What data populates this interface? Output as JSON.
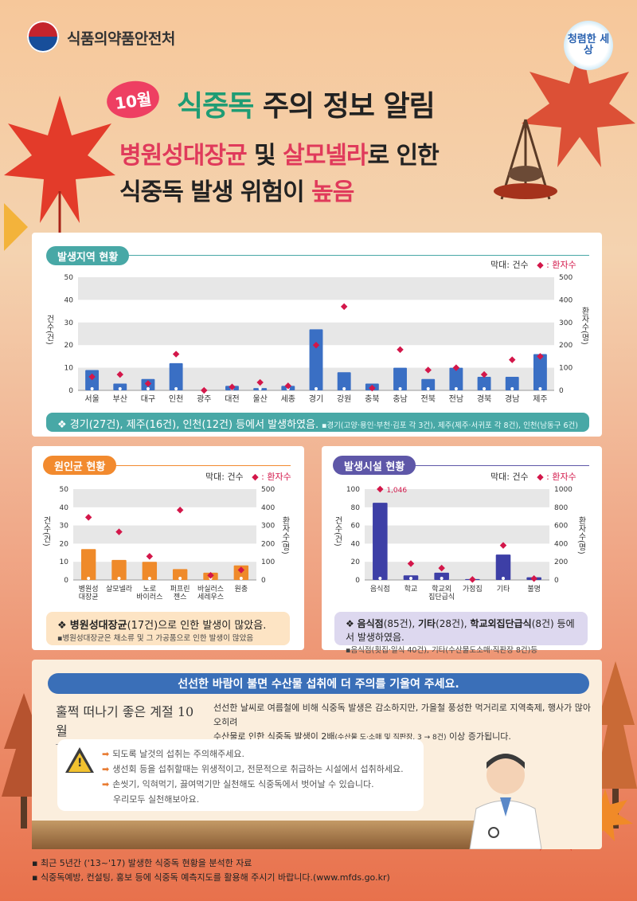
{
  "header": {
    "org": "식품의약품안전처",
    "badge": "청렴한 세상"
  },
  "title": {
    "month": "10월",
    "line1_a": "식중독",
    "line1_b": " 주의 정보 알림",
    "line2_a": "병원성대장균",
    "line2_b": " 및 ",
    "line2_c": "살모넬라",
    "line2_d": "로 인한",
    "line3_a": "식중독 발생 위험이 ",
    "line3_b": "높음"
  },
  "colors": {
    "region_bar": "#3a6fc4",
    "pathogen_bar": "#ef8a2a",
    "facility_bar": "#3d3fa6",
    "marker": "#d3174a",
    "teal": "#48a8a6",
    "orange": "#f28a2e",
    "purple": "#5e57a8"
  },
  "chart_data": [
    {
      "type": "bar",
      "title": "발생지역 현황",
      "legend": {
        "bar": "막대: 건수",
        "marker": "◆ : 환자수"
      },
      "ylabel": "건수(건)",
      "y2label": "환자수(명)",
      "ylim": [
        0,
        50
      ],
      "y2lim": [
        0,
        500
      ],
      "yticks": [
        "0",
        "10",
        "20",
        "30",
        "40",
        "50"
      ],
      "y2ticks": [
        "0",
        "100",
        "200",
        "300",
        "400",
        "500"
      ],
      "categories": [
        "서울",
        "부산",
        "대구",
        "인천",
        "광주",
        "대전",
        "울산",
        "세종",
        "경기",
        "강원",
        "충북",
        "충남",
        "전북",
        "전남",
        "경북",
        "경남",
        "제주"
      ],
      "series": [
        {
          "name": "건수",
          "values": [
            9,
            3,
            5,
            12,
            0,
            2,
            1,
            2,
            27,
            8,
            3,
            10,
            5,
            10,
            6,
            6,
            16
          ]
        },
        {
          "name": "환자수",
          "values": [
            60,
            70,
            30,
            160,
            0,
            15,
            35,
            20,
            200,
            370,
            10,
            180,
            90,
            100,
            70,
            135,
            150
          ]
        }
      ]
    },
    {
      "type": "bar",
      "title": "원인균 현황",
      "legend": {
        "bar": "막대: 건수",
        "marker": "◆ : 환자수"
      },
      "ylabel": "건수(건)",
      "y2label": "환자수(명)",
      "ylim": [
        0,
        50
      ],
      "y2lim": [
        0,
        500
      ],
      "yticks": [
        "0",
        "10",
        "20",
        "30",
        "40",
        "50"
      ],
      "y2ticks": [
        "0",
        "100",
        "200",
        "300",
        "400",
        "500"
      ],
      "categories": [
        [
          "병원성",
          "대장균"
        ],
        [
          "살모넬라"
        ],
        [
          "노로",
          "바이러스"
        ],
        [
          "퍼프린",
          "젠스"
        ],
        [
          "바실러스",
          "세레우스"
        ],
        [
          "원충"
        ]
      ],
      "series": [
        {
          "name": "건수",
          "values": [
            17,
            11,
            10,
            6,
            4,
            8
          ]
        },
        {
          "name": "환자수",
          "values": [
            345,
            265,
            130,
            385,
            25,
            55
          ]
        }
      ]
    },
    {
      "type": "bar",
      "title": "발생시설 현황",
      "legend": {
        "bar": "막대: 건수",
        "marker": "◆ : 환자수"
      },
      "ylabel": "건수(건)",
      "y2label": "환자수(명)",
      "ylim": [
        0,
        100
      ],
      "y2lim": [
        0,
        1000
      ],
      "yticks": [
        "0",
        "20",
        "40",
        "60",
        "80",
        "100"
      ],
      "y2ticks": [
        "0",
        "200",
        "400",
        "600",
        "800",
        "1000"
      ],
      "annotation": "1,046",
      "categories": [
        [
          "음식점"
        ],
        [
          "학교"
        ],
        [
          "학교외",
          "집단급식"
        ],
        [
          "가정집"
        ],
        [
          "기타"
        ],
        [
          "불명"
        ]
      ],
      "series": [
        {
          "name": "건수",
          "values": [
            85,
            5,
            8,
            1,
            28,
            3
          ]
        },
        {
          "name": "환자수",
          "values": [
            1046,
            180,
            130,
            5,
            380,
            15
          ]
        }
      ]
    }
  ],
  "region": {
    "summary_main": "경기(27건), 제주(16건), 인천(12건) 등에서 발생하였음.",
    "summary_sub": "▪경기(고양·용인·부천·김포 각 3건), 제주(제주·서귀포 각 8건), 인천(남동구 6건)"
  },
  "pathogen": {
    "summary_bold": "병원성대장균",
    "summary_rest": "(17건)으로 인한 발생이 많았음.",
    "summary_sub": "▪병원성대장균은 채소류 및 그 가공품으로 인한 발생이 많았음"
  },
  "facility": {
    "summary_b1": "음식점",
    "summary_r1": "(85건), ",
    "summary_b2": "기타",
    "summary_r2": "(28건), ",
    "summary_b3": "학교외집단급식",
    "summary_r3": "(8건) 등에서 발생하였음.",
    "summary_sub": "▪음식점(횟집·일식 40건), 기타(수산물도소매·직판장 8건)등"
  },
  "notice": {
    "title": "선선한 바람이 불면 수산물 섭취에 더 주의를 기울여 주세요.",
    "season": "훌쩍 떠나기 좋은 계절 10월",
    "desc1": "선선한 날씨로 여름철에 비해 식중독 발생은 감소하지만, 가을철 풍성한 먹거리로 지역축제, 행사가 많아 오히려",
    "desc2a": "수산물로 인한 식중독 발생이 2배",
    "desc2b": "(수산물 도·소매 및 직판장, 3 → 8건)",
    "desc2c": " 이상 증가됩니다.",
    "tips": [
      "되도록 날것의 섭취는 주의해주세요.",
      "생선회 등을 섭취할때는 위생적이고, 전문적으로 취급하는 시설에서 섭취하세요.",
      "손씻기, 익혀먹기, 끓여먹기만 실천해도 식중독에서 벗어날 수 있습니다.",
      "우리모두 실천해보아요."
    ]
  },
  "footer": {
    "line1": "최근 5년간 ('13~'17) 발생한 식중독 현황을 분석한 자료",
    "line2": "식중독예방, 컨설팅, 홍보 등에 식중독 예측지도를 활용해 주시기 바랍니다.(www.mfds.go.kr)"
  }
}
